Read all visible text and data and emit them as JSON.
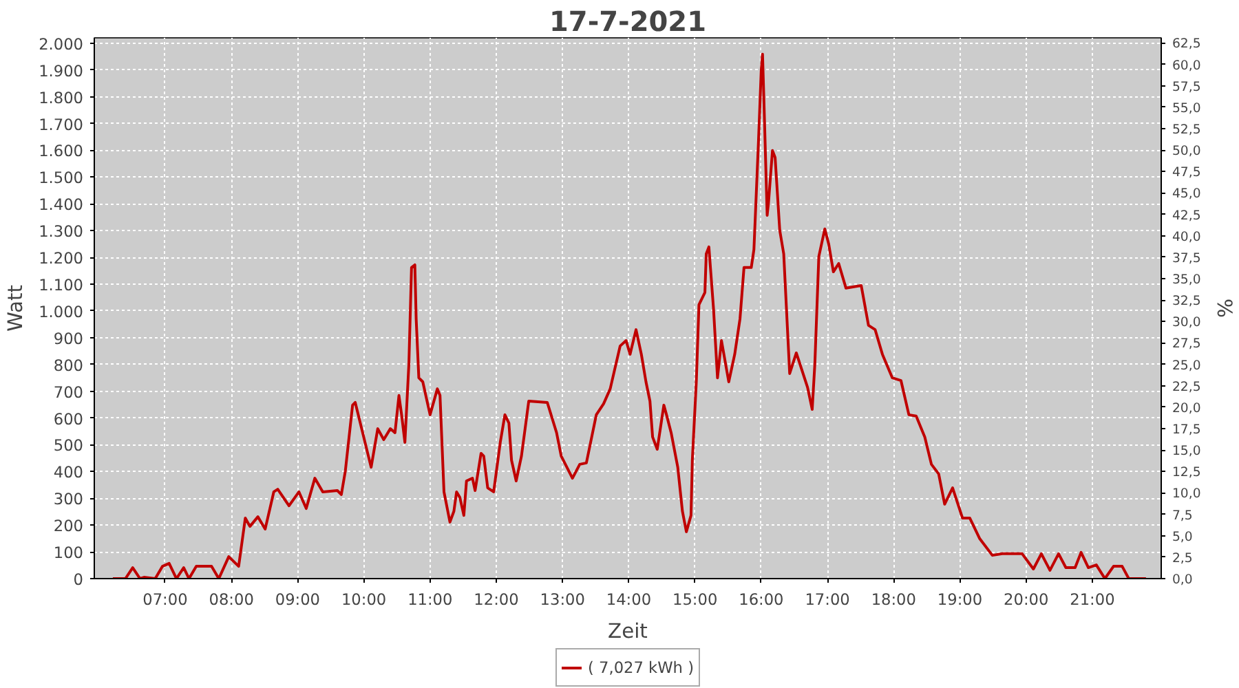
{
  "chart_data": {
    "type": "line",
    "title": "17-7-2021",
    "xlabel": "Zeit",
    "ylabel": "Watt",
    "y2label": "%",
    "x": [
      6.21,
      6.32,
      6.4,
      6.51,
      6.62,
      6.68,
      6.85,
      6.96,
      7.06,
      7.17,
      7.28,
      7.36,
      7.47,
      7.7,
      7.81,
      7.96,
      8.11,
      8.21,
      8.28,
      8.4,
      8.51,
      8.64,
      8.7,
      8.87,
      9.02,
      9.13,
      9.26,
      9.38,
      9.6,
      9.66,
      9.72,
      9.83,
      9.87,
      10.11,
      10.21,
      10.3,
      10.4,
      10.47,
      10.53,
      10.57,
      10.62,
      10.68,
      10.72,
      10.77,
      10.79,
      10.83,
      10.89,
      11.0,
      11.11,
      11.15,
      11.21,
      11.3,
      11.36,
      11.4,
      11.45,
      11.51,
      11.55,
      11.64,
      11.68,
      11.77,
      11.81,
      11.87,
      11.96,
      12.06,
      12.13,
      12.19,
      12.23,
      12.3,
      12.38,
      12.49,
      12.77,
      12.91,
      12.98,
      13.15,
      13.26,
      13.36,
      13.51,
      13.62,
      13.72,
      13.87,
      13.96,
      14.02,
      14.11,
      14.19,
      14.26,
      14.32,
      14.36,
      14.43,
      14.53,
      14.57,
      14.64,
      14.74,
      14.81,
      14.87,
      14.94,
      14.96,
      15.02,
      15.06,
      15.15,
      15.17,
      15.21,
      15.28,
      15.34,
      15.4,
      15.51,
      15.6,
      15.68,
      15.74,
      15.85,
      15.89,
      15.96,
      16.0,
      16.02,
      16.04,
      16.09,
      16.11,
      16.17,
      16.21,
      16.28,
      16.34,
      16.43,
      16.53,
      16.7,
      16.77,
      16.81,
      16.87,
      16.96,
      17.02,
      17.09,
      17.17,
      17.28,
      17.51,
      17.62,
      17.72,
      17.83,
      17.98,
      18.11,
      18.23,
      18.34,
      18.47,
      18.57,
      18.68,
      18.77,
      18.89,
      19.04,
      19.15,
      19.3,
      19.49,
      19.64,
      19.94,
      20.11,
      20.23,
      20.36,
      20.49,
      20.6,
      20.74,
      20.83,
      20.94,
      21.06,
      21.19,
      21.32,
      21.45,
      21.55,
      21.81
    ],
    "series": [
      {
        "name": "( 7,027 kWh )",
        "color": "#c00000",
        "values": [
          0,
          0,
          0,
          41,
          0,
          5,
          0,
          46,
          57,
          0,
          41,
          0,
          46,
          46,
          0,
          82,
          46,
          226,
          195,
          231,
          185,
          324,
          334,
          272,
          324,
          262,
          375,
          324,
          329,
          314,
          401,
          648,
          658,
          416,
          560,
          519,
          560,
          545,
          684,
          612,
          509,
          802,
          1162,
          1172,
          971,
          750,
          735,
          612,
          709,
          684,
          324,
          211,
          252,
          324,
          303,
          236,
          365,
          375,
          329,
          468,
          458,
          339,
          324,
          509,
          612,
          581,
          442,
          365,
          458,
          663,
          658,
          545,
          458,
          375,
          427,
          432,
          612,
          653,
          709,
          869,
          889,
          838,
          930,
          838,
          735,
          663,
          529,
          483,
          648,
          612,
          545,
          416,
          252,
          175,
          236,
          442,
          735,
          1023,
          1069,
          1213,
          1239,
          1008,
          750,
          889,
          735,
          838,
          971,
          1162,
          1162,
          1229,
          1640,
          1897,
          1959,
          1794,
          1357,
          1404,
          1599,
          1573,
          1301,
          1213,
          766,
          843,
          714,
          632,
          802,
          1203,
          1306,
          1249,
          1146,
          1177,
          1085,
          1095,
          946,
          930,
          838,
          750,
          740,
          612,
          607,
          529,
          427,
          391,
          278,
          339,
          226,
          226,
          149,
          87,
          93,
          93,
          36,
          93,
          31,
          93,
          41,
          41,
          98,
          41,
          51,
          0,
          46,
          46,
          0,
          0
        ]
      }
    ],
    "xlim": [
      5.93,
      22.04
    ],
    "ylim": [
      0,
      2020
    ],
    "y2lim": [
      0,
      63.1
    ],
    "xticks": [
      {
        "value": 7,
        "label": "07:00"
      },
      {
        "value": 8,
        "label": "08:00"
      },
      {
        "value": 9,
        "label": "09:00"
      },
      {
        "value": 10,
        "label": "10:00"
      },
      {
        "value": 11,
        "label": "11:00"
      },
      {
        "value": 12,
        "label": "12:00"
      },
      {
        "value": 13,
        "label": "13:00"
      },
      {
        "value": 14,
        "label": "14:00"
      },
      {
        "value": 15,
        "label": "15:00"
      },
      {
        "value": 16,
        "label": "16:00"
      },
      {
        "value": 17,
        "label": "17:00"
      },
      {
        "value": 18,
        "label": "18:00"
      },
      {
        "value": 19,
        "label": "19:00"
      },
      {
        "value": 20,
        "label": "20:00"
      },
      {
        "value": 21,
        "label": "21:00"
      }
    ],
    "yticks": [
      0,
      100,
      200,
      300,
      400,
      500,
      600,
      700,
      800,
      900,
      {
        "value": 1000,
        "label": "1.000"
      },
      {
        "value": 1100,
        "label": "1.100"
      },
      {
        "value": 1200,
        "label": "1.200"
      },
      {
        "value": 1300,
        "label": "1.300"
      },
      {
        "value": 1400,
        "label": "1.400"
      },
      {
        "value": 1500,
        "label": "1.500"
      },
      {
        "value": 1600,
        "label": "1.600"
      },
      {
        "value": 1700,
        "label": "1.700"
      },
      {
        "value": 1800,
        "label": "1.800"
      },
      {
        "value": 1900,
        "label": "1.900"
      },
      {
        "value": 2000,
        "label": "2.000"
      }
    ],
    "y2ticks": [
      {
        "value": 0,
        "label": "0,0"
      },
      {
        "value": 2.5,
        "label": "2,5"
      },
      {
        "value": 5,
        "label": "5,0"
      },
      {
        "value": 7.5,
        "label": "7,5"
      },
      {
        "value": 10,
        "label": "10,0"
      },
      {
        "value": 12.5,
        "label": "12,5"
      },
      {
        "value": 15,
        "label": "15,0"
      },
      {
        "value": 17.5,
        "label": "17,5"
      },
      {
        "value": 20,
        "label": "20,0"
      },
      {
        "value": 22.5,
        "label": "22,5"
      },
      {
        "value": 25,
        "label": "25,0"
      },
      {
        "value": 27.5,
        "label": "27,5"
      },
      {
        "value": 30,
        "label": "30,0"
      },
      {
        "value": 32.5,
        "label": "32,5"
      },
      {
        "value": 35,
        "label": "35,0"
      },
      {
        "value": 37.5,
        "label": "37,5"
      },
      {
        "value": 40,
        "label": "40,0"
      },
      {
        "value": 42.5,
        "label": "42,5"
      },
      {
        "value": 45,
        "label": "45,0"
      },
      {
        "value": 47.5,
        "label": "47,5"
      },
      {
        "value": 50,
        "label": "50,0"
      },
      {
        "value": 52.5,
        "label": "52,5"
      },
      {
        "value": 55,
        "label": "55,0"
      },
      {
        "value": 57.5,
        "label": "57,5"
      },
      {
        "value": 60,
        "label": "60,0"
      },
      {
        "value": 62.5,
        "label": "62,5"
      }
    ],
    "grid": true,
    "legend": "bottom"
  }
}
